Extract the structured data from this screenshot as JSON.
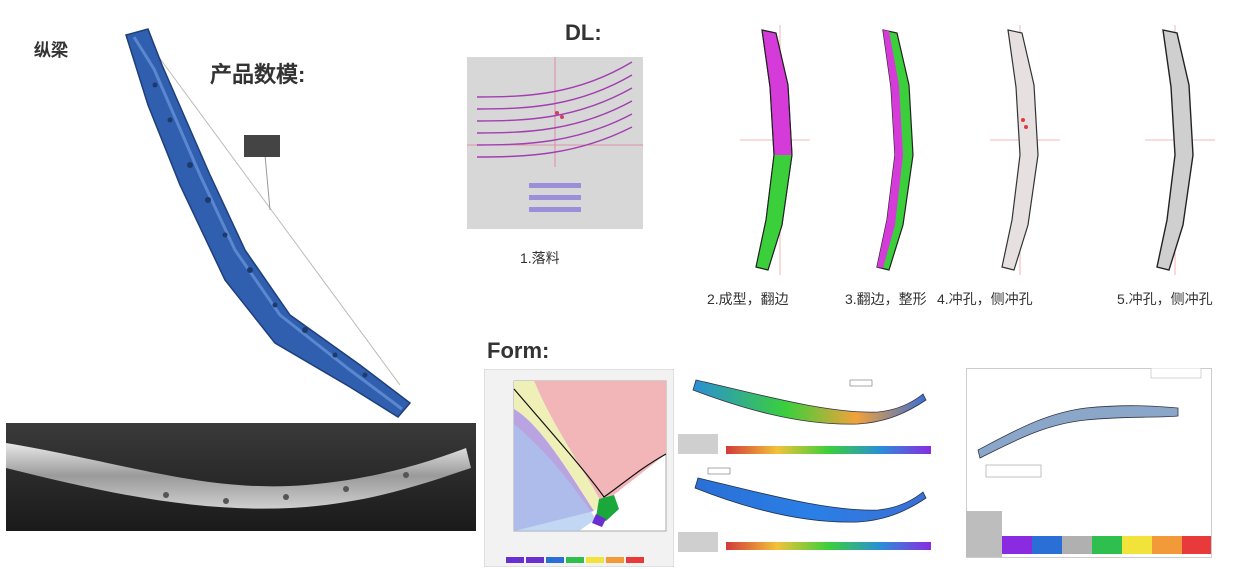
{
  "labels": {
    "part_name": "纵梁",
    "product_model": "产品数模:",
    "dl": "DL:",
    "form": "Form:"
  },
  "steps": [
    {
      "label": "1.落料"
    },
    {
      "label": "2.成型，翻边"
    },
    {
      "label": "3.翻边，整形"
    },
    {
      "label": "4.冲孔，侧冲孔"
    },
    {
      "label": "5.冲孔，侧冲孔"
    }
  ],
  "colors": {
    "model_blue": "#2f5fae",
    "magenta": "#d43bd8",
    "green": "#3bcf3b",
    "fld_red": "#f2b5b8",
    "fld_yellow": "#eef0b8",
    "fld_purple": "#b9a3e0",
    "fld_blue": "#a8c6ee"
  },
  "legend_colors": [
    "#8a2be2",
    "#2a6fd6",
    "#b0b0b0",
    "#2fbf4f",
    "#f2e33a",
    "#f29a3a",
    "#e83a3a"
  ]
}
